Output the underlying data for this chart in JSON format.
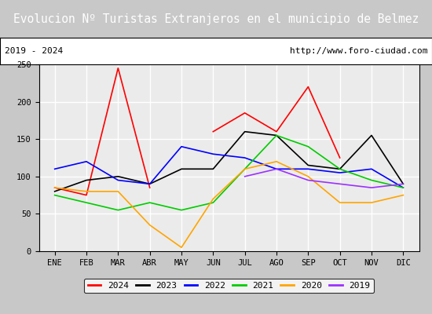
{
  "title": "Evolucion Nº Turistas Extranjeros en el municipio de Belmez",
  "subtitle_left": "2019 - 2024",
  "subtitle_right": "http://www.foro-ciudad.com",
  "title_bg_color": "#4472c4",
  "title_text_color": "#ffffff",
  "months": [
    "ENE",
    "FEB",
    "MAR",
    "ABR",
    "MAY",
    "JUN",
    "JUL",
    "AGO",
    "SEP",
    "OCT",
    "NOV",
    "DIC"
  ],
  "ylim": [
    0,
    250
  ],
  "yticks": [
    0,
    50,
    100,
    150,
    200,
    250
  ],
  "series": {
    "2024": {
      "color": "#ff0000",
      "values": [
        85,
        75,
        245,
        85,
        null,
        160,
        185,
        160,
        220,
        125,
        null,
        null
      ]
    },
    "2023": {
      "color": "#000000",
      "values": [
        80,
        95,
        100,
        90,
        110,
        110,
        160,
        155,
        115,
        110,
        155,
        90
      ]
    },
    "2022": {
      "color": "#0000ff",
      "values": [
        110,
        120,
        95,
        90,
        140,
        130,
        125,
        110,
        110,
        105,
        110,
        85
      ]
    },
    "2021": {
      "color": "#00cc00",
      "values": [
        75,
        65,
        55,
        65,
        55,
        65,
        110,
        155,
        140,
        110,
        95,
        85
      ]
    },
    "2020": {
      "color": "#ffa500",
      "values": [
        85,
        80,
        80,
        35,
        5,
        70,
        110,
        120,
        100,
        65,
        65,
        75
      ]
    },
    "2019": {
      "color": "#9b30ff",
      "values": [
        null,
        null,
        null,
        null,
        null,
        null,
        100,
        110,
        95,
        90,
        85,
        90
      ]
    }
  },
  "legend_order": [
    "2024",
    "2023",
    "2022",
    "2021",
    "2020",
    "2019"
  ],
  "plot_bg_color": "#ebebeb",
  "grid_color": "#ffffff",
  "font_family": "monospace"
}
